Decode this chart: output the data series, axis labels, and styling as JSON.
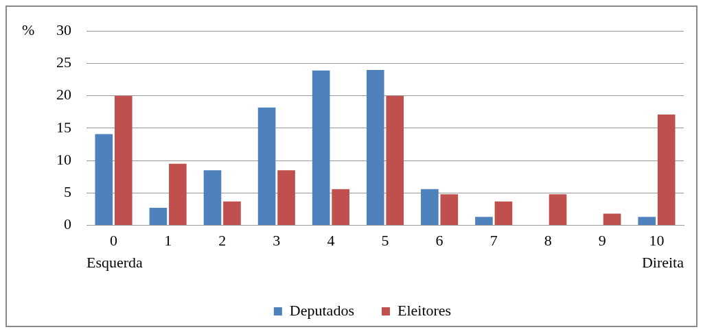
{
  "chart_data": {
    "type": "bar",
    "ylabel": "%",
    "categories": [
      "0",
      "1",
      "2",
      "3",
      "4",
      "5",
      "6",
      "7",
      "8",
      "9",
      "10"
    ],
    "series": [
      {
        "name": "Deputados",
        "color": "#4f81bd",
        "values": [
          14.1,
          2.7,
          8.5,
          18.2,
          23.9,
          24.0,
          5.6,
          1.3,
          0,
          0,
          1.3
        ]
      },
      {
        "name": "Eleitores",
        "color": "#c0504d",
        "values": [
          20.0,
          9.5,
          3.7,
          8.5,
          5.6,
          20.0,
          4.8,
          3.7,
          4.8,
          1.8,
          17.1
        ]
      }
    ],
    "ylim": [
      0,
      30
    ],
    "yticks": [
      0,
      5,
      10,
      15,
      20,
      25,
      30
    ],
    "grid": "y",
    "legend": "bottom",
    "annotations": [
      "Esquerda",
      "Direita"
    ]
  }
}
